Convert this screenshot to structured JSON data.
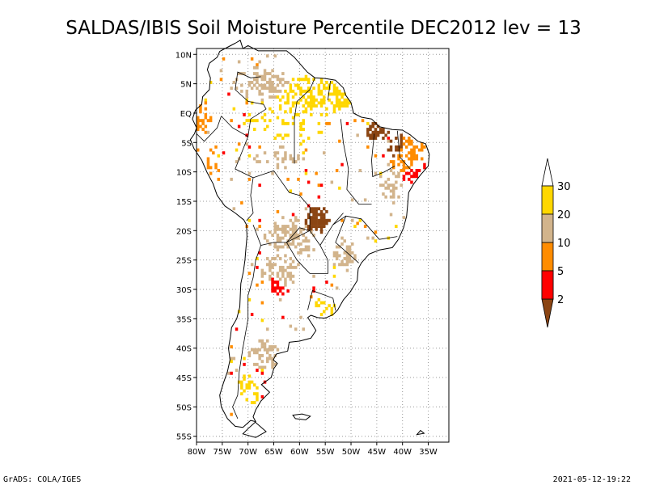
{
  "title": "SALDAS/IBIS Soil Moisture Percentile DEC2012 lev = 13",
  "map": {
    "lon_range": [
      -80,
      -31
    ],
    "lat_range": [
      -56,
      11
    ],
    "lat_ticks": [
      {
        "value": 10,
        "label": "10N"
      },
      {
        "value": 5,
        "label": "5N"
      },
      {
        "value": 0,
        "label": "EQ"
      },
      {
        "value": -5,
        "label": "5S"
      },
      {
        "value": -10,
        "label": "10S"
      },
      {
        "value": -15,
        "label": "15S"
      },
      {
        "value": -20,
        "label": "20S"
      },
      {
        "value": -25,
        "label": "25S"
      },
      {
        "value": -30,
        "label": "30S"
      },
      {
        "value": -35,
        "label": "35S"
      },
      {
        "value": -40,
        "label": "40S"
      },
      {
        "value": -45,
        "label": "45S"
      },
      {
        "value": -50,
        "label": "50S"
      },
      {
        "value": -55,
        "label": "55S"
      }
    ],
    "lon_ticks": [
      {
        "value": -80,
        "label": "80W"
      },
      {
        "value": -75,
        "label": "75W"
      },
      {
        "value": -70,
        "label": "70W"
      },
      {
        "value": -65,
        "label": "65W"
      },
      {
        "value": -60,
        "label": "60W"
      },
      {
        "value": -55,
        "label": "55W"
      },
      {
        "value": -50,
        "label": "50W"
      },
      {
        "value": -45,
        "label": "45W"
      },
      {
        "value": -40,
        "label": "40W"
      },
      {
        "value": -35,
        "label": "35W"
      }
    ],
    "grid": "dotted",
    "regions": [
      {
        "name": "guiana-shield",
        "lon": -57,
        "lat": 3,
        "rlon": 8,
        "rlat": 3.5,
        "level": "20-30",
        "density": 0.55
      },
      {
        "name": "north-colombia-venezuela",
        "lon": -67,
        "lat": 5,
        "rlon": 6,
        "rlat": 3,
        "level": "10-20",
        "density": 0.5
      },
      {
        "name": "amapa",
        "lon": -52,
        "lat": 2.5,
        "rlon": 2.5,
        "rlat": 2.2,
        "level": "20-30",
        "density": 0.8
      },
      {
        "name": "ecuador-coast",
        "lon": -79,
        "lat": -1,
        "rlon": 1.8,
        "rlat": 2.8,
        "level": "5-10",
        "density": 0.55
      },
      {
        "name": "peru-coast",
        "lon": -77,
        "lat": -9,
        "rlon": 1.5,
        "rlat": 3,
        "level": "5-10",
        "density": 0.4
      },
      {
        "name": "amazon-central",
        "lon": -63,
        "lat": -2,
        "rlon": 8,
        "rlat": 4,
        "level": "20-30",
        "density": 0.18
      },
      {
        "name": "amazon-south",
        "lon": -64,
        "lat": -8,
        "rlon": 5,
        "rlat": 2.5,
        "level": "10-20",
        "density": 0.25
      },
      {
        "name": "maranhao",
        "lon": -45,
        "lat": -3,
        "rlon": 2.5,
        "rlat": 1.5,
        "level": "below-2",
        "density": 0.85
      },
      {
        "name": "nordeste-west",
        "lon": -41,
        "lat": -6,
        "rlon": 2,
        "rlat": 2.5,
        "level": "below-2",
        "density": 0.6
      },
      {
        "name": "nordeste",
        "lon": -39,
        "lat": -7,
        "rlon": 4,
        "rlat": 3.5,
        "level": "5-10",
        "density": 0.6
      },
      {
        "name": "nordeste-dry",
        "lon": -38,
        "lat": -9,
        "rlon": 3,
        "rlat": 3,
        "level": "2-5",
        "density": 0.45
      },
      {
        "name": "bahia",
        "lon": -42,
        "lat": -12,
        "rlon": 2.5,
        "rlat": 3.5,
        "level": "10-20",
        "density": 0.4
      },
      {
        "name": "pantanal",
        "lon": -56.5,
        "lat": -18,
        "rlon": 2.5,
        "rlat": 2.5,
        "level": "below-2",
        "density": 0.85
      },
      {
        "name": "chaco",
        "lon": -62,
        "lat": -21,
        "rlon": 5,
        "rlat": 3.5,
        "level": "10-20",
        "density": 0.55
      },
      {
        "name": "chaco-red",
        "lon": -61,
        "lat": -22,
        "rlon": 4,
        "rlat": 2.5,
        "level": "2-5",
        "density": 0.4
      },
      {
        "name": "parana",
        "lon": -51,
        "lat": -24,
        "rlon": 2.5,
        "rlat": 3,
        "level": "10-20",
        "density": 0.55
      },
      {
        "name": "north-argentina",
        "lon": -64,
        "lat": -27,
        "rlon": 3.5,
        "rlat": 3.5,
        "level": "10-20",
        "density": 0.55
      },
      {
        "name": "cordoba",
        "lon": -64.5,
        "lat": -29,
        "rlon": 2,
        "rlat": 2.5,
        "level": "2-5",
        "density": 0.55
      },
      {
        "name": "uruguay-coast",
        "lon": -55,
        "lat": -33,
        "rlon": 2.5,
        "rlat": 1.5,
        "level": "20-30",
        "density": 0.35
      },
      {
        "name": "patagonia-north",
        "lon": -66.5,
        "lat": -41,
        "rlon": 3.5,
        "rlat": 2.5,
        "level": "10-20",
        "density": 0.6
      },
      {
        "name": "patagonia-south",
        "lon": -70,
        "lat": -47,
        "rlon": 2.5,
        "rlat": 3,
        "level": "20-30",
        "density": 0.35
      }
    ]
  },
  "colorbar": {
    "levels": [
      {
        "label": "30",
        "color": "#ffd700"
      },
      {
        "label": "20",
        "color": "#d2b48c"
      },
      {
        "label": "10",
        "color": "#ff8c00"
      },
      {
        "label": "5",
        "color": "#ff0000"
      },
      {
        "label": "2",
        "color": "#8b4513"
      }
    ],
    "top_color": "#ffffff",
    "bottom_color": "#8b4513"
  },
  "footer": {
    "left": "GrADS: COLA/IGES",
    "right": "2021-05-12-19:22"
  }
}
